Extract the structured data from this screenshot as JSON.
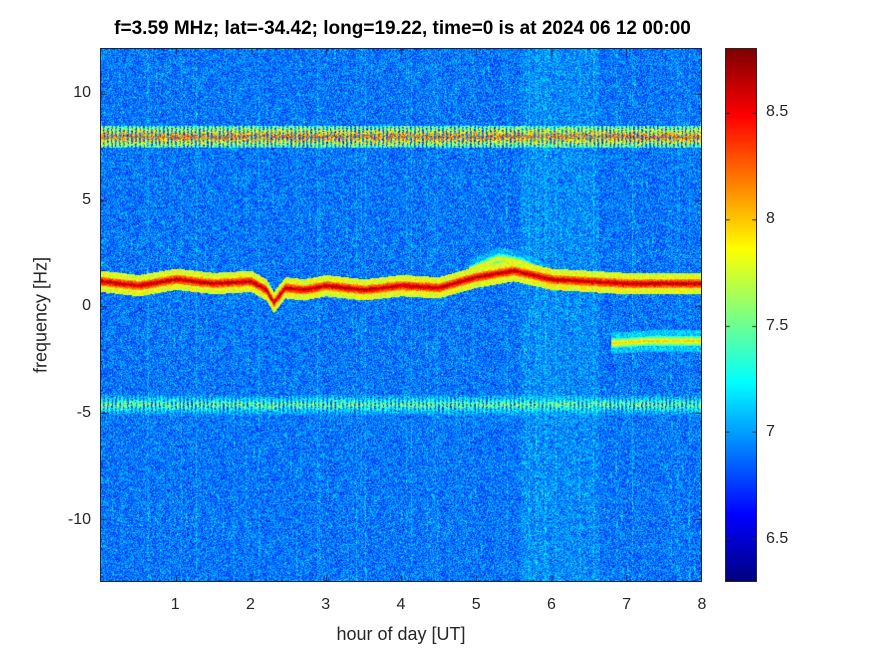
{
  "chart_data": {
    "type": "heatmap",
    "title": "f=3.59 MHz;  lat=-34.42; long=19.22, time=0 is at 2024 06 12 00:00",
    "xlabel": "hour of day [UT]",
    "ylabel": "frequency [Hz]",
    "xlim": [
      0,
      8
    ],
    "ylim": [
      -12.9,
      12.1
    ],
    "xticks": [
      1,
      2,
      3,
      4,
      5,
      6,
      7,
      8
    ],
    "yticks": [
      10,
      5,
      0,
      -5,
      -10
    ],
    "colorbar": {
      "limits": [
        6.3,
        8.8
      ],
      "ticks": [
        8.5,
        8,
        7.5,
        7,
        6.5
      ],
      "colormap": "jet"
    },
    "background_level": 6.9,
    "bands": [
      {
        "freq": 8.0,
        "level": 8.2
      },
      {
        "freq": -4.6,
        "level": 7.6
      }
    ],
    "main_trace": {
      "level": 8.7,
      "points": [
        [
          0,
          1.2
        ],
        [
          0.5,
          1.0
        ],
        [
          1,
          1.3
        ],
        [
          1.5,
          1.1
        ],
        [
          2,
          1.2
        ],
        [
          2.2,
          0.8
        ],
        [
          2.3,
          0.2
        ],
        [
          2.45,
          0.9
        ],
        [
          2.7,
          0.8
        ],
        [
          3,
          1.0
        ],
        [
          3.5,
          0.8
        ],
        [
          4,
          1.0
        ],
        [
          4.5,
          0.9
        ],
        [
          5,
          1.4
        ],
        [
          5.5,
          1.7
        ],
        [
          6,
          1.3
        ],
        [
          6.5,
          1.2
        ],
        [
          7,
          1.1
        ],
        [
          8,
          1.1
        ]
      ]
    },
    "secondary_traces": [
      {
        "level": 7.9,
        "points": [
          [
            4.9,
            1.7
          ],
          [
            5.3,
            2.3
          ],
          [
            5.6,
            2.1
          ],
          [
            5.9,
            1.6
          ]
        ]
      },
      {
        "level": 8.0,
        "points": [
          [
            6.8,
            -1.7
          ],
          [
            7.3,
            -1.6
          ],
          [
            8,
            -1.6
          ]
        ]
      }
    ]
  }
}
